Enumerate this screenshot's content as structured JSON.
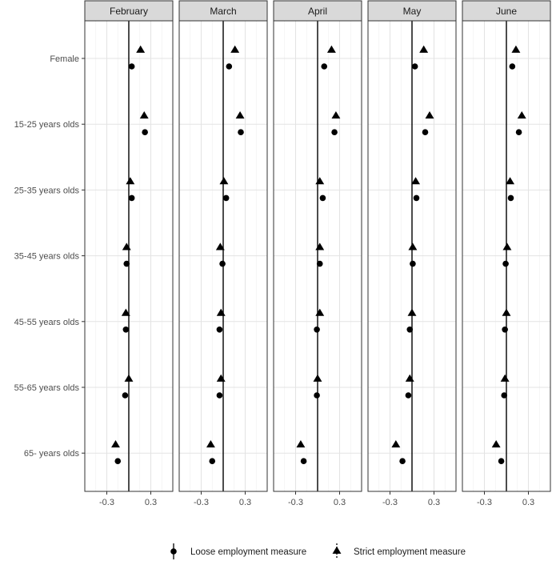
{
  "chart_data": {
    "type": "scatter",
    "title": "",
    "xlabel": "",
    "ylabel": "",
    "xlim": [
      -0.6,
      0.6
    ],
    "x_ticks": [
      -0.3,
      0.3
    ],
    "x_tick_labels": [
      "-0.3",
      "0.3"
    ],
    "grid": true,
    "reference_line_x": 0,
    "categories": [
      "Female",
      "15-25 years olds",
      "25-35 years olds",
      "35-45 years olds",
      "45-55 years olds",
      "55-65 years olds",
      "65- years olds"
    ],
    "legend_position": "bottom",
    "facets": [
      {
        "name": "February",
        "series": [
          {
            "name": "Loose employment measure",
            "marker": "circle",
            "values": [
              0.04,
              0.22,
              0.04,
              -0.03,
              -0.04,
              -0.05,
              -0.15
            ]
          },
          {
            "name": "Strict employment measure",
            "marker": "triangle",
            "values": [
              0.16,
              0.21,
              0.02,
              -0.03,
              -0.04,
              0.0,
              -0.18
            ]
          }
        ]
      },
      {
        "name": "March",
        "series": [
          {
            "name": "Loose employment measure",
            "marker": "circle",
            "values": [
              0.08,
              0.24,
              0.04,
              -0.01,
              -0.05,
              -0.05,
              -0.15
            ]
          },
          {
            "name": "Strict employment measure",
            "marker": "triangle",
            "values": [
              0.16,
              0.23,
              0.01,
              -0.04,
              -0.03,
              -0.03,
              -0.17
            ]
          }
        ]
      },
      {
        "name": "April",
        "series": [
          {
            "name": "Loose employment measure",
            "marker": "circle",
            "values": [
              0.09,
              0.23,
              0.07,
              0.03,
              -0.01,
              -0.01,
              -0.19
            ]
          },
          {
            "name": "Strict employment measure",
            "marker": "triangle",
            "values": [
              0.19,
              0.25,
              0.03,
              0.03,
              0.03,
              0.0,
              -0.23
            ]
          }
        ]
      },
      {
        "name": "May",
        "series": [
          {
            "name": "Loose employment measure",
            "marker": "circle",
            "values": [
              0.04,
              0.18,
              0.06,
              0.01,
              -0.03,
              -0.05,
              -0.13
            ]
          },
          {
            "name": "Strict employment measure",
            "marker": "triangle",
            "values": [
              0.16,
              0.24,
              0.05,
              0.01,
              0.0,
              -0.03,
              -0.22
            ]
          }
        ]
      },
      {
        "name": "June",
        "series": [
          {
            "name": "Loose employment measure",
            "marker": "circle",
            "values": [
              0.08,
              0.17,
              0.06,
              -0.01,
              -0.02,
              -0.03,
              -0.07
            ]
          },
          {
            "name": "Strict employment measure",
            "marker": "triangle",
            "values": [
              0.13,
              0.21,
              0.05,
              0.01,
              0.0,
              -0.02,
              -0.14
            ]
          }
        ]
      }
    ]
  }
}
